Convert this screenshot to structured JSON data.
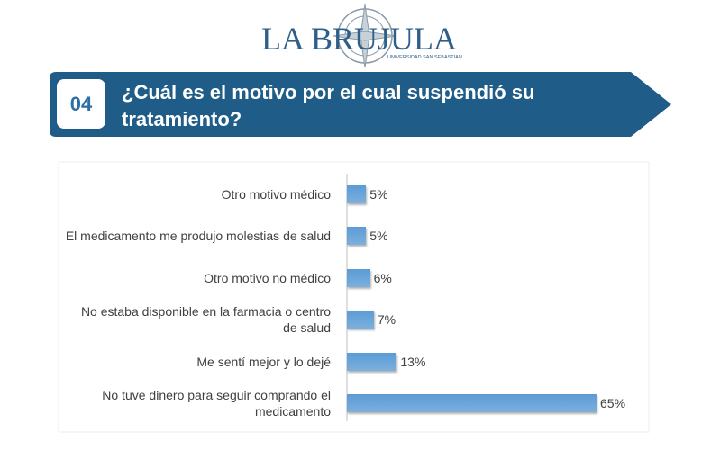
{
  "header": {
    "logo": "LA BRUJULA",
    "logo_subtitle": "UNIVERSIDAD SAN SEBASTIAN",
    "number": "04",
    "title": "¿Cuál es el motivo por el cual suspendió su tratamiento?"
  },
  "chart_data": {
    "type": "bar",
    "orientation": "horizontal",
    "categories": [
      "Otro motivo médico",
      "El medicamento me produjo molestias de salud",
      "Otro motivo no médico",
      "No estaba disponible en la farmacia o centro de salud",
      "Me sentí mejor y lo dejé",
      "No tuve dinero para seguir comprando el medicamento"
    ],
    "values": [
      5,
      5,
      6,
      7,
      13,
      65
    ],
    "value_labels": [
      "5%",
      "5%",
      "6%",
      "7%",
      "13%",
      "65%"
    ],
    "color": "#5b9bd5"
  }
}
